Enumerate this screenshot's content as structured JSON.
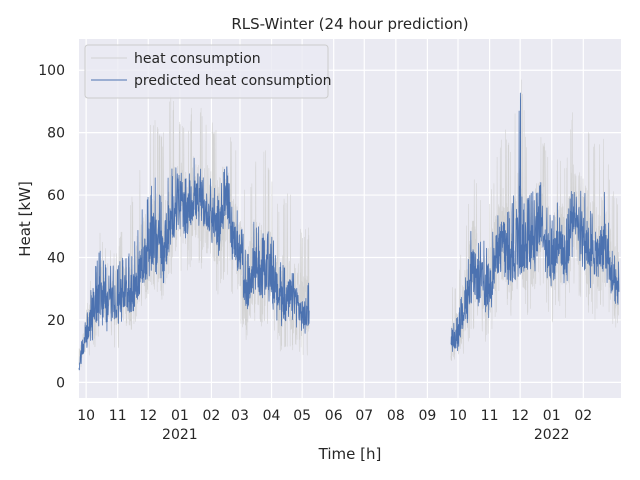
{
  "chart_data": {
    "type": "line",
    "title": "RLS-Winter (24 hour prediction)",
    "xlabel": "Time [h]",
    "ylabel": "Heat [kW]",
    "ylim": [
      -5,
      110
    ],
    "xlim": [
      "2020-09-24",
      "2022-03-10"
    ],
    "grid": true,
    "legend_position": "top-left",
    "y_ticks": [
      0,
      20,
      40,
      60,
      80,
      100
    ],
    "x_ticks": [
      {
        "date": "2020-10-01",
        "label": "10"
      },
      {
        "date": "2020-11-01",
        "label": "11"
      },
      {
        "date": "2020-12-01",
        "label": "12"
      },
      {
        "date": "2021-01-01",
        "label": "01",
        "year": "2021"
      },
      {
        "date": "2021-02-01",
        "label": "02"
      },
      {
        "date": "2021-03-01",
        "label": "03"
      },
      {
        "date": "2021-04-01",
        "label": "04"
      },
      {
        "date": "2021-05-01",
        "label": "05"
      },
      {
        "date": "2021-06-01",
        "label": "06"
      },
      {
        "date": "2021-07-01",
        "label": "07"
      },
      {
        "date": "2021-08-01",
        "label": "08"
      },
      {
        "date": "2021-09-01",
        "label": "09"
      },
      {
        "date": "2021-10-01",
        "label": "10"
      },
      {
        "date": "2021-11-01",
        "label": "11"
      },
      {
        "date": "2021-12-01",
        "label": "12"
      },
      {
        "date": "2022-01-01",
        "label": "01",
        "year": "2022"
      },
      {
        "date": "2022-02-01",
        "label": "02"
      }
    ],
    "series": [
      {
        "name": "heat consumption",
        "color": "#d3d3d3",
        "segments": [
          {
            "dates": [
              "2020-09-24",
              "2020-10-01",
              "2020-10-08",
              "2020-10-15",
              "2020-10-22",
              "2020-11-01",
              "2020-11-08",
              "2020-11-15",
              "2020-11-22",
              "2020-12-01",
              "2020-12-08",
              "2020-12-15",
              "2020-12-22",
              "2021-01-01",
              "2021-01-08",
              "2021-01-15",
              "2021-01-22",
              "2021-02-01",
              "2021-02-08",
              "2021-02-15",
              "2021-02-22",
              "2021-03-01",
              "2021-03-08",
              "2021-03-15",
              "2021-03-22",
              "2021-04-01",
              "2021-04-08",
              "2021-04-15",
              "2021-04-22",
              "2021-05-01",
              "2021-05-08"
            ],
            "mean": [
              7,
              16,
              24,
              30,
              26,
              27,
              30,
              29,
              36,
              44,
              48,
              42,
              52,
              58,
              55,
              60,
              57,
              55,
              50,
              60,
              48,
              42,
              28,
              40,
              35,
              36,
              28,
              26,
              30,
              22,
              24
            ],
            "high": [
              15,
              25,
              40,
              50,
              42,
              45,
              52,
              60,
              68,
              82,
              85,
              78,
              93,
              86,
              82,
              92,
              88,
              84,
              80,
              88,
              76,
              72,
              60,
              70,
              82,
              65,
              58,
              60,
              64,
              48,
              50
            ],
            "low": [
              2,
              6,
              10,
              14,
              12,
              10,
              15,
              14,
              20,
              26,
              28,
              24,
              32,
              36,
              34,
              40,
              36,
              30,
              28,
              34,
              26,
              20,
              12,
              20,
              18,
              16,
              10,
              8,
              10,
              6,
              8
            ]
          },
          {
            "dates": [
              "2021-09-24",
              "2021-10-01",
              "2021-10-08",
              "2021-10-15",
              "2021-10-22",
              "2021-11-01",
              "2021-11-08",
              "2021-11-15",
              "2021-11-22",
              "2021-12-01",
              "2021-12-08",
              "2021-12-15",
              "2021-12-22",
              "2022-01-01",
              "2022-01-08",
              "2022-01-15",
              "2022-01-22",
              "2022-02-01",
              "2022-02-08",
              "2022-02-15",
              "2022-02-22",
              "2022-03-01",
              "2022-03-08"
            ],
            "mean": [
              12,
              16,
              26,
              38,
              34,
              32,
              42,
              48,
              38,
              52,
              44,
              46,
              54,
              38,
              48,
              40,
              56,
              50,
              42,
              42,
              46,
              34,
              30
            ],
            "high": [
              30,
              35,
              50,
              70,
              62,
              60,
              72,
              84,
              75,
              104,
              74,
              84,
              82,
              66,
              76,
              70,
              90,
              84,
              80,
              75,
              80,
              62,
              60
            ],
            "low": [
              5,
              6,
              10,
              16,
              14,
              12,
              20,
              24,
              18,
              28,
              20,
              22,
              30,
              18,
              24,
              20,
              30,
              26,
              20,
              20,
              24,
              16,
              12
            ]
          }
        ]
      },
      {
        "name": "predicted heat consumption",
        "color": "#4c72b0",
        "segments": [
          {
            "dates": [
              "2020-09-24",
              "2020-10-01",
              "2020-10-08",
              "2020-10-15",
              "2020-10-22",
              "2020-11-01",
              "2020-11-08",
              "2020-11-15",
              "2020-11-22",
              "2020-12-01",
              "2020-12-08",
              "2020-12-15",
              "2020-12-22",
              "2021-01-01",
              "2021-01-08",
              "2021-01-15",
              "2021-01-22",
              "2021-02-01",
              "2021-02-08",
              "2021-02-15",
              "2021-02-22",
              "2021-03-01",
              "2021-03-08",
              "2021-03-15",
              "2021-03-22",
              "2021-04-01",
              "2021-04-08",
              "2021-04-15",
              "2021-04-22",
              "2021-05-01",
              "2021-05-08"
            ],
            "mean": [
              6,
              15,
              23,
              28,
              25,
              26,
              29,
              28,
              35,
              43,
              47,
              41,
              51,
              57,
              54,
              59,
              56,
              54,
              49,
              59,
              47,
              41,
              27,
              39,
              34,
              35,
              27,
              25,
              29,
              21,
              23
            ],
            "high": [
              12,
              22,
              34,
              44,
              38,
              38,
              42,
              44,
              52,
              62,
              66,
              58,
              70,
              68,
              66,
              72,
              68,
              66,
              62,
              72,
              58,
              54,
              40,
              52,
              50,
              48,
              40,
              38,
              44,
              32,
              34
            ],
            "low": [
              3,
              10,
              14,
              18,
              16,
              18,
              20,
              20,
              26,
              32,
              34,
              30,
              40,
              46,
              44,
              48,
              46,
              44,
              38,
              46,
              36,
              30,
              18,
              28,
              24,
              24,
              18,
              16,
              20,
              14,
              16
            ]
          },
          {
            "dates": [
              "2021-09-24",
              "2021-10-01",
              "2021-10-08",
              "2021-10-15",
              "2021-10-22",
              "2021-11-01",
              "2021-11-08",
              "2021-11-15",
              "2021-11-22",
              "2021-12-01",
              "2021-12-08",
              "2021-12-15",
              "2021-12-22",
              "2022-01-01",
              "2022-01-08",
              "2022-01-15",
              "2022-01-22",
              "2022-02-01",
              "2022-02-08",
              "2022-02-15",
              "2022-02-22",
              "2022-03-01",
              "2022-03-08"
            ],
            "mean": [
              12,
              15,
              25,
              36,
              32,
              31,
              41,
              46,
              37,
              50,
              43,
              45,
              52,
              37,
              47,
              39,
              55,
              49,
              41,
              41,
              45,
              33,
              29
            ],
            "high": [
              18,
              22,
              36,
              52,
              48,
              46,
              56,
              62,
              52,
              94,
              60,
              62,
              66,
              52,
              62,
              54,
              66,
              62,
              56,
              56,
              62,
              46,
              42
            ],
            "low": [
              8,
              10,
              16,
              26,
              22,
              20,
              30,
              34,
              26,
              36,
              32,
              34,
              40,
              26,
              36,
              28,
              42,
              36,
              30,
              30,
              34,
              24,
              20
            ]
          }
        ]
      }
    ]
  }
}
